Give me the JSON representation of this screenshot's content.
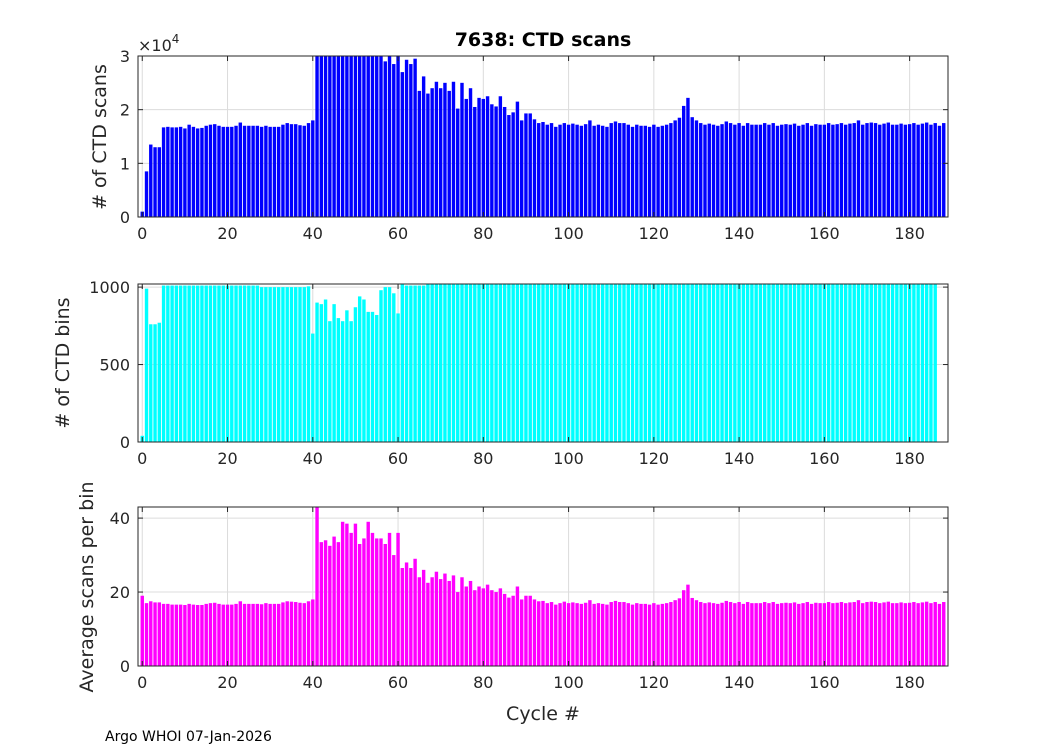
{
  "chart_data": [
    {
      "type": "bar",
      "title": "7638: CTD scans",
      "ylabel": "# of CTD scans",
      "xlabel": "",
      "exponent_label": "×10",
      "exponent_power": "4",
      "xlim": [
        -1,
        189
      ],
      "ylim": [
        0,
        3
      ],
      "xticks": [
        0,
        20,
        40,
        60,
        80,
        100,
        120,
        140,
        160,
        180
      ],
      "yticks": [
        0,
        1,
        2,
        3
      ],
      "color": "#0000ff",
      "grid": true,
      "x_start": 0,
      "values": [
        0.1,
        0.85,
        1.35,
        1.3,
        1.3,
        1.67,
        1.68,
        1.67,
        1.67,
        1.68,
        1.65,
        1.72,
        1.68,
        1.65,
        1.66,
        1.7,
        1.72,
        1.73,
        1.7,
        1.68,
        1.68,
        1.68,
        1.7,
        1.76,
        1.7,
        1.7,
        1.7,
        1.7,
        1.68,
        1.7,
        1.68,
        1.68,
        1.68,
        1.72,
        1.75,
        1.73,
        1.73,
        1.71,
        1.7,
        1.75,
        1.8,
        3.0,
        3.0,
        3.0,
        3.0,
        3.0,
        3.0,
        3.0,
        3.0,
        3.0,
        3.0,
        3.0,
        3.0,
        3.0,
        3.0,
        3.0,
        3.0,
        2.9,
        3.0,
        2.85,
        3.0,
        2.7,
        2.93,
        2.85,
        2.95,
        2.35,
        2.62,
        2.3,
        2.4,
        2.52,
        2.4,
        2.5,
        2.35,
        2.52,
        2.02,
        2.5,
        2.2,
        2.4,
        2.05,
        2.22,
        2.2,
        2.25,
        2.1,
        2.06,
        2.25,
        2.05,
        1.9,
        1.95,
        2.15,
        1.8,
        1.93,
        1.93,
        1.82,
        1.75,
        1.77,
        1.72,
        1.75,
        1.68,
        1.72,
        1.75,
        1.72,
        1.74,
        1.72,
        1.7,
        1.73,
        1.8,
        1.7,
        1.72,
        1.7,
        1.68,
        1.75,
        1.78,
        1.75,
        1.75,
        1.72,
        1.68,
        1.72,
        1.7,
        1.7,
        1.68,
        1.72,
        1.68,
        1.7,
        1.72,
        1.75,
        1.8,
        1.85,
        2.07,
        2.22,
        1.86,
        1.8,
        1.75,
        1.72,
        1.74,
        1.72,
        1.7,
        1.73,
        1.78,
        1.75,
        1.72,
        1.75,
        1.7,
        1.75,
        1.72,
        1.72,
        1.72,
        1.75,
        1.72,
        1.75,
        1.7,
        1.72,
        1.73,
        1.72,
        1.74,
        1.7,
        1.72,
        1.75,
        1.7,
        1.73,
        1.72,
        1.72,
        1.75,
        1.72,
        1.73,
        1.75,
        1.72,
        1.74,
        1.75,
        1.8,
        1.72,
        1.75,
        1.76,
        1.75,
        1.72,
        1.74,
        1.76,
        1.72,
        1.72,
        1.74,
        1.72,
        1.73,
        1.75,
        1.72,
        1.74,
        1.76,
        1.72,
        1.75,
        1.7,
        1.75
      ]
    },
    {
      "type": "bar",
      "title": "",
      "ylabel": "# of CTD bins",
      "xlabel": "",
      "xlim": [
        -1,
        189
      ],
      "ylim": [
        0,
        1020
      ],
      "xticks": [
        0,
        20,
        40,
        60,
        80,
        100,
        120,
        140,
        160,
        180
      ],
      "yticks": [
        0,
        500,
        1000
      ],
      "color": "#00ffff",
      "grid": true,
      "x_start": 0,
      "values": [
        40,
        990,
        760,
        760,
        770,
        1010,
        1010,
        1010,
        1010,
        1010,
        1010,
        1010,
        1010,
        1010,
        1010,
        1010,
        1010,
        1010,
        1010,
        1010,
        1010,
        1010,
        1010,
        1010,
        1010,
        1010,
        1010,
        1010,
        1000,
        1000,
        1000,
        1000,
        1000,
        1000,
        1000,
        1000,
        1000,
        1000,
        1000,
        1005,
        700,
        900,
        890,
        920,
        780,
        890,
        800,
        780,
        850,
        780,
        870,
        940,
        920,
        840,
        840,
        820,
        980,
        1000,
        1000,
        960,
        830,
        1020,
        1010,
        1010,
        1010,
        1010,
        1010,
        1020,
        1020,
        1020,
        1020,
        1020,
        1020,
        1020,
        1020,
        1020,
        1020,
        1020,
        1020,
        1020,
        1020,
        1020,
        1020,
        1020,
        1020,
        1020,
        1020,
        1020,
        1020,
        1020,
        1020,
        1020,
        1020,
        1020,
        1020,
        1020,
        1020,
        1020,
        1020,
        1020,
        1020,
        1020,
        1020,
        1020,
        1020,
        1020,
        1020,
        1020,
        1020,
        1020,
        1020,
        1020,
        1020,
        1020,
        1020,
        1020,
        1020,
        1020,
        1020,
        1020,
        1020,
        1020,
        1020,
        1020,
        1020,
        1020,
        1020,
        1020,
        1020,
        1020,
        1020,
        1020,
        1020,
        1020,
        1020,
        1020,
        1020,
        1020,
        1020,
        1020,
        1020,
        1020,
        1020,
        1020,
        1020,
        1020,
        1020,
        1020,
        1020,
        1020,
        1020,
        1020,
        1020,
        1020,
        1020,
        1020,
        1020,
        1020,
        1020,
        1020,
        1020,
        1020,
        1020,
        1020,
        1020,
        1020,
        1020,
        1020,
        1020,
        1020,
        1020,
        1020,
        1020,
        1020,
        1020,
        1020,
        1020,
        1020,
        1020,
        1020,
        1020,
        1020,
        1020,
        1020,
        1020,
        1020,
        1020
      ]
    },
    {
      "type": "bar",
      "title": "",
      "ylabel": "Average scans per bin",
      "xlabel": "Cycle #",
      "xlim": [
        -1,
        189
      ],
      "ylim": [
        0,
        43
      ],
      "xticks": [
        0,
        20,
        40,
        60,
        80,
        100,
        120,
        140,
        160,
        180
      ],
      "yticks": [
        0,
        20,
        40
      ],
      "color": "#ff00ff",
      "grid": true,
      "x_start": 0,
      "values": [
        19,
        17,
        17.5,
        17.2,
        17.2,
        16.8,
        16.8,
        16.6,
        16.6,
        16.6,
        16.5,
        16.8,
        16.6,
        16.5,
        16.5,
        16.8,
        17,
        17.1,
        16.8,
        16.6,
        16.6,
        16.6,
        16.8,
        17.5,
        16.8,
        16.8,
        16.8,
        16.8,
        16.7,
        17,
        16.8,
        16.8,
        16.8,
        17.2,
        17.5,
        17.4,
        17.3,
        17.1,
        17,
        17.5,
        18,
        43,
        33.5,
        34,
        32.5,
        35,
        33.5,
        39,
        38.5,
        36,
        38.5,
        33,
        34.5,
        39,
        36,
        34.5,
        34.5,
        33,
        36,
        30,
        36,
        26.5,
        28,
        26.5,
        29,
        24,
        26,
        22.5,
        24,
        25.5,
        23.5,
        25,
        23,
        24.5,
        20,
        24,
        21.5,
        23,
        20.5,
        21.5,
        21,
        22,
        20.5,
        20,
        21,
        19.5,
        18.5,
        19,
        21.5,
        18,
        19,
        19,
        18,
        17.5,
        17.6,
        17,
        17.3,
        16.6,
        17,
        17.4,
        17,
        17.2,
        17,
        16.8,
        17.1,
        17.8,
        16.8,
        17,
        16.8,
        16.6,
        17.3,
        17.6,
        17.3,
        17.3,
        17,
        16.6,
        17,
        16.8,
        16.8,
        16.6,
        17,
        16.6,
        16.8,
        17,
        17.3,
        17.8,
        18.3,
        20.5,
        22,
        18.4,
        17.8,
        17.3,
        17,
        17.2,
        17,
        16.8,
        17.1,
        17.6,
        17.3,
        17,
        17.3,
        16.8,
        17.3,
        17,
        17,
        17,
        17.3,
        17,
        17.3,
        16.8,
        17,
        17.1,
        17,
        17.2,
        16.8,
        17,
        17.3,
        16.8,
        17.1,
        17,
        17,
        17.3,
        17,
        17.1,
        17.3,
        17,
        17.2,
        17.3,
        17.8,
        17,
        17.3,
        17.4,
        17.3,
        17,
        17.2,
        17.4,
        17,
        17,
        17.2,
        17,
        17.1,
        17.3,
        17,
        17.2,
        17.4,
        17,
        17.3,
        16.8,
        17.3
      ]
    }
  ],
  "footer": {
    "text": "Argo WHOI 07-Jan-2026"
  }
}
